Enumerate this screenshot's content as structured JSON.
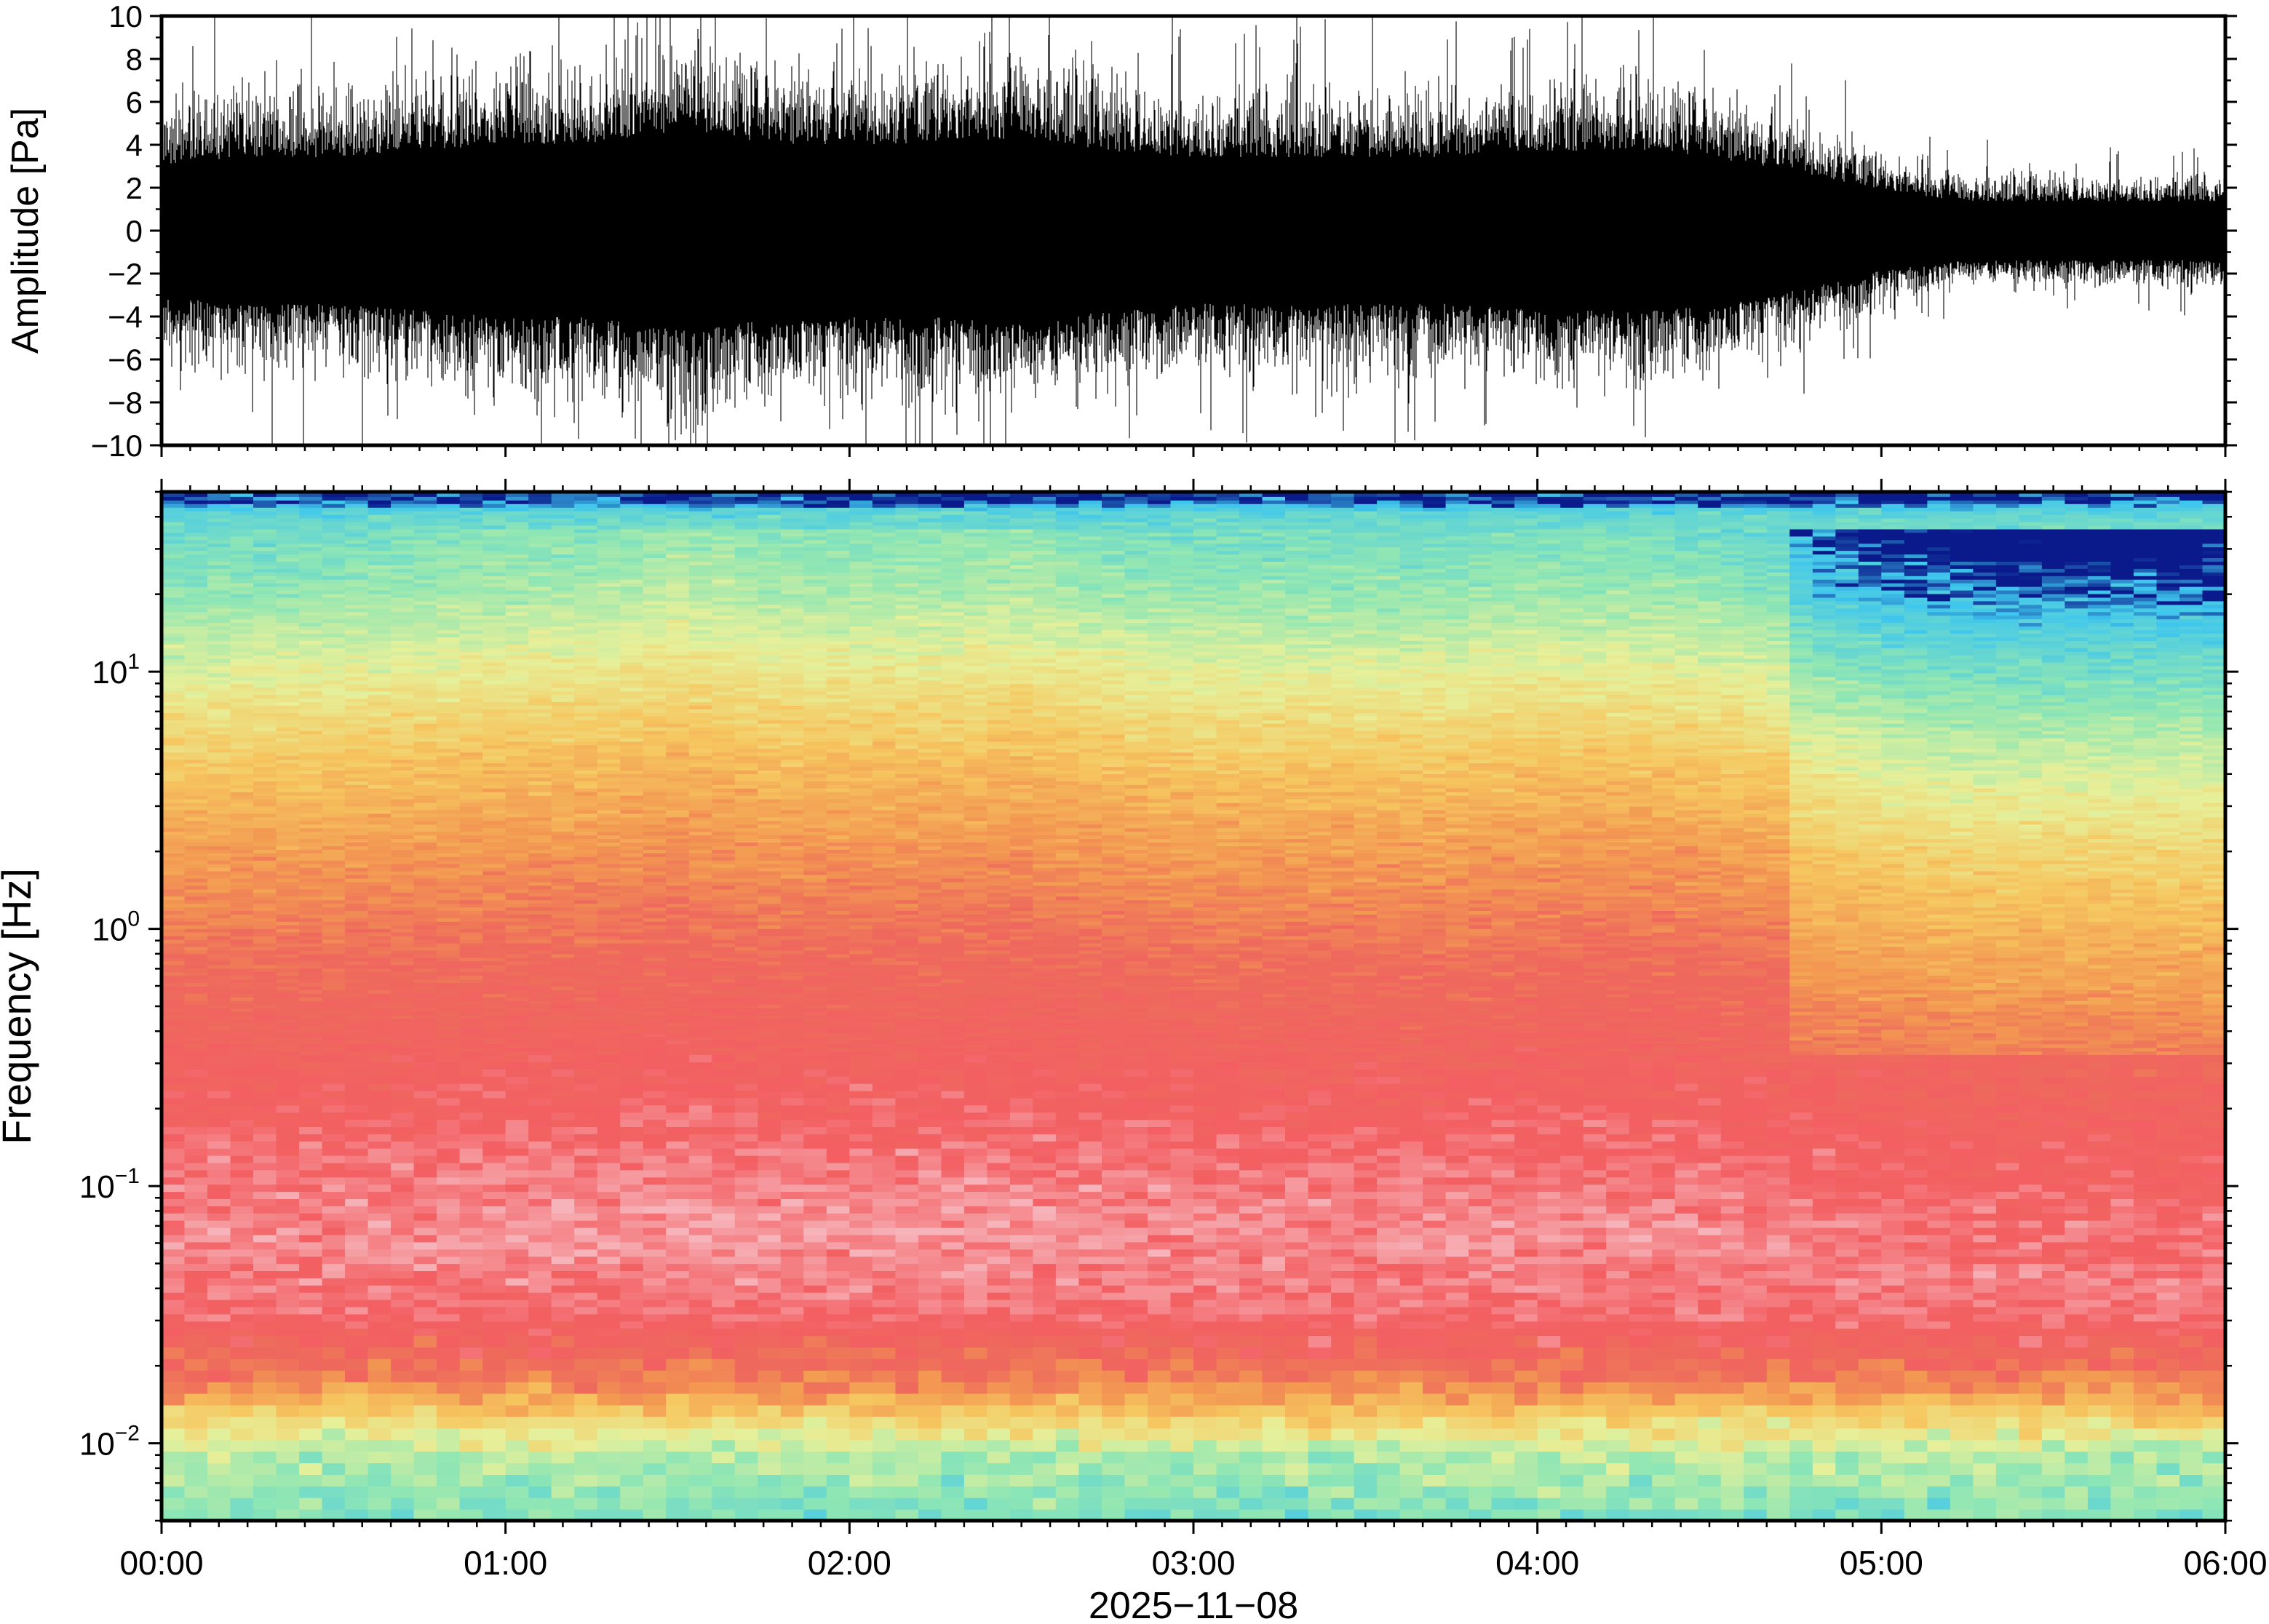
{
  "chart_data": [
    {
      "type": "line",
      "title": "",
      "xlabel": "",
      "ylabel": "Amplitude [Pa]",
      "xlim": [
        "00:00",
        "06:00"
      ],
      "ylim": [
        -10,
        10
      ],
      "yticks": [
        "10",
        "8",
        "6",
        "4",
        "2",
        "0",
        "−2",
        "−4",
        "−6",
        "−8",
        "−10"
      ],
      "ytick_values": [
        10,
        8,
        6,
        4,
        2,
        0,
        -2,
        -4,
        -6,
        -8,
        -10
      ],
      "grid": false,
      "series": [
        {
          "color": "#000000",
          "envelope_hours": [
            0.0,
            0.25,
            0.5,
            0.75,
            1.0,
            1.25,
            1.5,
            1.75,
            2.0,
            2.25,
            2.5,
            2.75,
            3.0,
            3.25,
            3.5,
            3.75,
            4.0,
            4.25,
            4.5,
            4.75,
            5.0,
            5.25,
            5.5,
            5.75,
            6.0
          ],
          "envelope_amplitude_pa": [
            5.0,
            5.5,
            5.5,
            6.0,
            6.5,
            6.5,
            7.5,
            6.5,
            6.5,
            6.5,
            7.0,
            6.0,
            5.5,
            5.5,
            5.5,
            5.5,
            6.0,
            6.0,
            5.5,
            4.5,
            3.0,
            2.2,
            2.2,
            2.2,
            2.2
          ]
        }
      ]
    },
    {
      "type": "heatmap",
      "title": "",
      "xlabel": "2025−11−08",
      "ylabel": "Frequency [Hz]",
      "xlim": [
        "00:00",
        "06:00"
      ],
      "ylim": [
        0.005,
        50
      ],
      "yscale": "log",
      "yticks": [
        {
          "base": "10",
          "exp": "1",
          "value": 10
        },
        {
          "base": "10",
          "exp": "0",
          "value": 1
        },
        {
          "base": "10",
          "exp": "−1",
          "value": 0.1
        },
        {
          "base": "10",
          "exp": "−2",
          "value": 0.01
        }
      ],
      "xticks": [
        "00:00",
        "01:00",
        "02:00",
        "03:00",
        "04:00",
        "05:00",
        "06:00"
      ],
      "colormap": [
        "#0a1a8a",
        "#3ec6ee",
        "#8ee6b4",
        "#e6f09a",
        "#f6c760",
        "#f39a52",
        "#ee6a5c",
        "#f35f62",
        "#f6b3b9"
      ],
      "description_bands_hz": [
        {
          "hz_range": [
            45,
            50
          ],
          "color": "#0a1a8a"
        },
        {
          "hz_range": [
            15,
            45
          ],
          "color": "#7fd6d0"
        },
        {
          "hz_range": [
            4,
            15
          ],
          "color": "#e6f09a"
        },
        {
          "hz_range": [
            0.6,
            4
          ],
          "color": "#f39a52"
        },
        {
          "hz_range": [
            0.05,
            0.6
          ],
          "color": "#f35f62"
        },
        {
          "hz_range": [
            0.02,
            0.05
          ],
          "color": "#f6b3b9"
        },
        {
          "hz_range": [
            0.012,
            0.02
          ],
          "color": "#f6c760"
        },
        {
          "hz_range": [
            0.005,
            0.012
          ],
          "color": "#8ee6b4"
        }
      ]
    }
  ]
}
